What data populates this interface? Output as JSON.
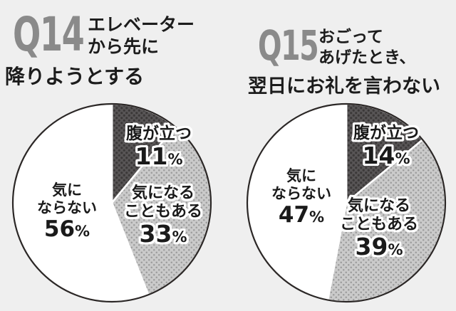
{
  "ui": {
    "percent_sign": "%"
  },
  "colors": {
    "background": "#efefef",
    "q_number_gray": "#8a8a8a",
    "title_text": "#1c1c1c",
    "label_text": "#1a1a1a",
    "label_outline": "#ffffff",
    "slice_dark": "#585556",
    "slice_dark_dot": "#3b3838",
    "slice_light": "#cacaca",
    "slice_light_dot": "#9c9c9c",
    "slice_white": "#ffffff",
    "slice_gap": "#ffffff",
    "pie_outline": "#2b2726"
  },
  "chart_data": [
    {
      "type": "pie",
      "question_number": "Q14",
      "title_lines": [
        "エレベーター",
        "から先に",
        "降りようとする"
      ],
      "start_angle_deg": 0,
      "direction": "clockwise",
      "slices": [
        {
          "label": "腹が立つ",
          "label_lines": [
            "腹が立つ"
          ],
          "value": 11,
          "style": "dark_dots"
        },
        {
          "label": "気になることもある",
          "label_lines": [
            "気になる",
            "こともある"
          ],
          "value": 33,
          "style": "light_dots"
        },
        {
          "label": "気にならない",
          "label_lines": [
            "気に",
            "ならない"
          ],
          "value": 56,
          "style": "white"
        }
      ]
    },
    {
      "type": "pie",
      "question_number": "Q15",
      "title_lines": [
        "おごって",
        "あげたとき、",
        "翌日にお礼を言わない"
      ],
      "start_angle_deg": 0,
      "direction": "clockwise",
      "slices": [
        {
          "label": "腹が立つ",
          "label_lines": [
            "腹が立つ"
          ],
          "value": 14,
          "style": "dark_dots"
        },
        {
          "label": "気になることもある",
          "label_lines": [
            "気になる",
            "こともある"
          ],
          "value": 39,
          "style": "light_dots"
        },
        {
          "label": "気にならない",
          "label_lines": [
            "気に",
            "ならない"
          ],
          "value": 47,
          "style": "white"
        }
      ]
    }
  ]
}
